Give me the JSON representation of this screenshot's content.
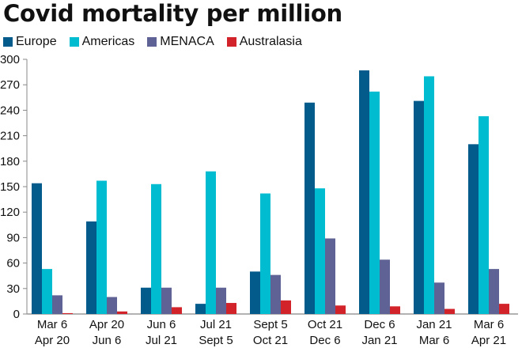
{
  "chart_data": {
    "type": "bar",
    "title": "Covid mortality per million",
    "xlabel": "",
    "ylabel": "",
    "ylim": [
      0,
      300
    ],
    "yticks": [
      0,
      30,
      60,
      90,
      120,
      150,
      180,
      210,
      240,
      270,
      300
    ],
    "grid": false,
    "legend_position": "top-left",
    "categories": [
      [
        "Mar 6",
        "Apr 20"
      ],
      [
        "Apr 20",
        "Jun 6"
      ],
      [
        "Jun 6",
        "Jul 21"
      ],
      [
        "Jul 21",
        "Sept 5"
      ],
      [
        "Sept 5",
        "Oct 21"
      ],
      [
        "Oct 21",
        "Dec 6"
      ],
      [
        "Dec 6",
        "Jan 21"
      ],
      [
        "Jan 21",
        "Mar 6"
      ],
      [
        "Mar 6",
        "Apr 21"
      ]
    ],
    "series": [
      {
        "name": "Europe",
        "color": "#035b8c",
        "values": [
          154,
          109,
          31,
          12,
          50,
          249,
          287,
          251,
          200
        ]
      },
      {
        "name": "Americas",
        "color": "#00bcd0",
        "values": [
          53,
          157,
          153,
          168,
          142,
          148,
          262,
          280,
          233
        ]
      },
      {
        "name": "MENACA",
        "color": "#5f6294",
        "values": [
          22,
          20,
          31,
          31,
          46,
          89,
          64,
          37,
          53
        ]
      },
      {
        "name": "Australasia",
        "color": "#d2232a",
        "values": [
          1,
          3,
          8,
          13,
          16,
          10,
          9,
          6,
          12
        ]
      }
    ]
  }
}
